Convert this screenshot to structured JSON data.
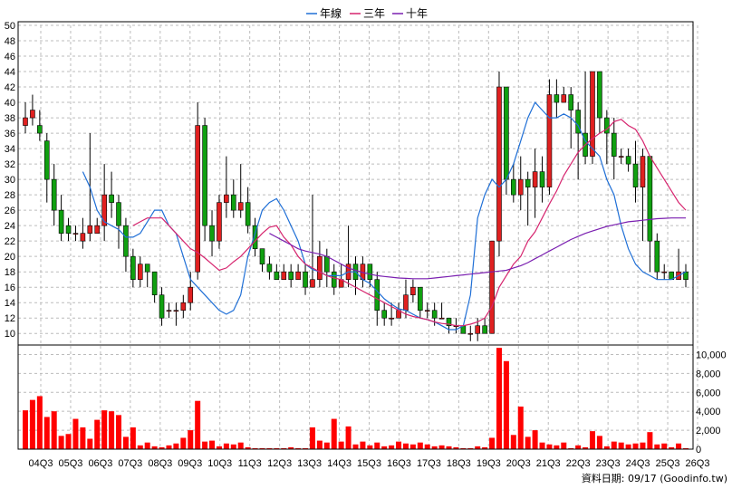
{
  "legend": [
    {
      "label": "年線",
      "color": "#1f6fd6"
    },
    {
      "label": "三年",
      "color": "#d6246e"
    },
    {
      "label": "十年",
      "color": "#7a1fb0"
    }
  ],
  "footer": {
    "text": "資料日期: 09/17  (Goodinfo.tw)"
  },
  "colors": {
    "up": "#e02020",
    "down": "#10a010",
    "wick": "#000000",
    "volume": "#ff0000",
    "grid": "#bcbcbc"
  },
  "chart_data": [
    {
      "type": "candlestick",
      "x_ticks": [
        "04Q3",
        "05Q3",
        "06Q3",
        "07Q3",
        "08Q3",
        "09Q3",
        "10Q3",
        "11Q3",
        "12Q3",
        "13Q3",
        "14Q3",
        "15Q3",
        "16Q3",
        "17Q3",
        "18Q3",
        "19Q3",
        "20Q3",
        "21Q3",
        "22Q3",
        "23Q3",
        "24Q3",
        "25Q3",
        "26Q3"
      ],
      "y_ticks": [
        10,
        12,
        14,
        16,
        18,
        20,
        22,
        24,
        26,
        28,
        30,
        32,
        34,
        36,
        38,
        40,
        42,
        44,
        46,
        48,
        50
      ],
      "ylim": [
        8.5,
        50
      ],
      "xlim": [
        0,
        92
      ],
      "grid": true,
      "legend_position": "top-center",
      "candles": [
        [
          37,
          38,
          36,
          40
        ],
        [
          38,
          39,
          37,
          41
        ],
        [
          37,
          36,
          35,
          39
        ],
        [
          35,
          30,
          27,
          36
        ],
        [
          30,
          26,
          24,
          32
        ],
        [
          26,
          23,
          22,
          28
        ],
        [
          24,
          23,
          22,
          25
        ],
        [
          23,
          23,
          22,
          24
        ],
        [
          22,
          23,
          21,
          25
        ],
        [
          23,
          24,
          22,
          36
        ],
        [
          23,
          24,
          23,
          25
        ],
        [
          24,
          28,
          22,
          32
        ],
        [
          28,
          27,
          25,
          31
        ],
        [
          27,
          24,
          21,
          28
        ],
        [
          24,
          20,
          18,
          25
        ],
        [
          20,
          17,
          16,
          21
        ],
        [
          17,
          19,
          16,
          20
        ],
        [
          19,
          18,
          16,
          19
        ],
        [
          18,
          15,
          14,
          18
        ],
        [
          15,
          12,
          11,
          16
        ],
        [
          13,
          13,
          12,
          14
        ],
        [
          13,
          13,
          11,
          14
        ],
        [
          13,
          14,
          12,
          15
        ],
        [
          14,
          16,
          13,
          18
        ],
        [
          18,
          37,
          17,
          40
        ],
        [
          37,
          24,
          22,
          38
        ],
        [
          24,
          22,
          20,
          26
        ],
        [
          22,
          27,
          21,
          28
        ],
        [
          27,
          28,
          25,
          33
        ],
        [
          28,
          26,
          25,
          30
        ],
        [
          26,
          27,
          25,
          32
        ],
        [
          27,
          24,
          23,
          29
        ],
        [
          24,
          21,
          20,
          25
        ],
        [
          21,
          19,
          18,
          21
        ],
        [
          19,
          18,
          17,
          20
        ],
        [
          18,
          17,
          17,
          19
        ],
        [
          17,
          18,
          17,
          19
        ],
        [
          18,
          17,
          16,
          19
        ],
        [
          17,
          18,
          17,
          19
        ],
        [
          18,
          16,
          15,
          19
        ],
        [
          16,
          17,
          16,
          28
        ],
        [
          17,
          20,
          16,
          22
        ],
        [
          20,
          18,
          16,
          21
        ],
        [
          18,
          16,
          15,
          19
        ],
        [
          16,
          17,
          16,
          19
        ],
        [
          17,
          19,
          16,
          24
        ],
        [
          19,
          17,
          15,
          20
        ],
        [
          17,
          19,
          16,
          20
        ],
        [
          19,
          17,
          16,
          19
        ],
        [
          17,
          13,
          11,
          18
        ],
        [
          13,
          12,
          11,
          14
        ],
        [
          12,
          12,
          11,
          14
        ],
        [
          12,
          13,
          12,
          14
        ],
        [
          13,
          15,
          12,
          17
        ],
        [
          15,
          16,
          14,
          17
        ],
        [
          16,
          13,
          12,
          16
        ],
        [
          13,
          13,
          12,
          14
        ],
        [
          13,
          12,
          11,
          14
        ],
        [
          12,
          12,
          12,
          14
        ],
        [
          12,
          11,
          10,
          12
        ],
        [
          11,
          11,
          10,
          12
        ],
        [
          11,
          10,
          10,
          11
        ],
        [
          10,
          10,
          9,
          11
        ],
        [
          10,
          11,
          9,
          12
        ],
        [
          11,
          10,
          10,
          12
        ],
        [
          10,
          22,
          10,
          22
        ],
        [
          22,
          42,
          20,
          44
        ],
        [
          42,
          30,
          28,
          42
        ],
        [
          30,
          28,
          27,
          32
        ],
        [
          28,
          30,
          26,
          33
        ],
        [
          30,
          29,
          24,
          31
        ],
        [
          29,
          31,
          25,
          34
        ],
        [
          31,
          29,
          27,
          33
        ],
        [
          29,
          41,
          28,
          43
        ],
        [
          41,
          40,
          38,
          43
        ],
        [
          40,
          41,
          40,
          42
        ],
        [
          41,
          39,
          34,
          42
        ],
        [
          39,
          36,
          30,
          40
        ],
        [
          36,
          33,
          32,
          44
        ],
        [
          33,
          44,
          32,
          44
        ],
        [
          44,
          38,
          36,
          44
        ],
        [
          38,
          36,
          32,
          39
        ],
        [
          36,
          33,
          30,
          38
        ],
        [
          33,
          33,
          32,
          34
        ],
        [
          33,
          32,
          31,
          34
        ],
        [
          32,
          29,
          27,
          35
        ],
        [
          29,
          33,
          22,
          34
        ],
        [
          33,
          22,
          18,
          33
        ],
        [
          22,
          18,
          17,
          23
        ],
        [
          18,
          18,
          17,
          19
        ],
        [
          18,
          17,
          17,
          18
        ],
        [
          17,
          18,
          17,
          21
        ],
        [
          18,
          17,
          16,
          19
        ]
      ],
      "series": [
        {
          "name": "年線",
          "color": "#1f6fd6",
          "x": [
            8,
            9,
            10,
            11,
            12,
            13,
            14,
            15,
            16,
            17,
            18,
            19,
            20,
            21,
            22,
            23,
            24,
            25,
            26,
            27,
            28,
            29,
            30,
            31,
            32,
            33,
            34,
            35,
            36,
            37,
            38,
            39,
            40,
            41,
            42,
            43,
            44,
            45,
            46,
            47,
            48,
            49,
            50,
            51,
            52,
            53,
            54,
            55,
            56,
            57,
            58,
            59,
            60,
            61,
            62,
            63,
            64,
            65,
            66,
            67,
            68,
            69,
            70,
            71,
            72,
            73,
            74,
            75,
            76,
            77,
            78,
            79,
            80,
            81,
            82,
            83,
            84,
            85,
            86,
            87,
            88,
            89,
            90,
            91,
            92
          ],
          "values": [
            31,
            29,
            26,
            24.5,
            24,
            23.5,
            22.5,
            22.5,
            23,
            24.5,
            26,
            26,
            24,
            23,
            20,
            17,
            16,
            15,
            14,
            13,
            12.5,
            13,
            15,
            20,
            23,
            26,
            27,
            27.5,
            26,
            24,
            22,
            19,
            18.3,
            18,
            17.5,
            17.5,
            17.5,
            18,
            18,
            17,
            16.5,
            15.5,
            14.5,
            13.8,
            13.2,
            13,
            12.5,
            12,
            11.8,
            11.5,
            11,
            10.5,
            10.5,
            11,
            15,
            25,
            28,
            30,
            29,
            30,
            32,
            35,
            38,
            40,
            39,
            38,
            38,
            38.5,
            38,
            37,
            35,
            34,
            33,
            30,
            28,
            24,
            21,
            19,
            18,
            17.5,
            17,
            17,
            17,
            17.5,
            18
          ]
        },
        {
          "name": "三年",
          "color": "#d6246e",
          "x": [
            15,
            16,
            17,
            18,
            19,
            20,
            21,
            22,
            23,
            24,
            25,
            26,
            27,
            28,
            29,
            30,
            31,
            32,
            33,
            34,
            35,
            36,
            37,
            38,
            39,
            40,
            41,
            42,
            43,
            44,
            45,
            46,
            47,
            48,
            49,
            50,
            51,
            52,
            53,
            54,
            55,
            56,
            57,
            58,
            59,
            60,
            61,
            62,
            63,
            64,
            65,
            66,
            67,
            68,
            69,
            70,
            71,
            72,
            73,
            74,
            75,
            76,
            77,
            78,
            79,
            80,
            81,
            82,
            83,
            84,
            85,
            86,
            87,
            88,
            89,
            90,
            91,
            92
          ],
          "values": [
            24,
            24.5,
            25,
            25,
            25,
            24,
            23,
            22,
            21,
            20.5,
            19.8,
            19,
            18.2,
            18.5,
            19.3,
            20,
            21,
            22,
            23,
            23.8,
            24,
            22.5,
            21.5,
            20,
            19,
            18.5,
            18,
            17.5,
            17.2,
            17,
            16.5,
            16,
            15.5,
            15,
            14.5,
            14,
            13.5,
            13,
            12.5,
            12.2,
            12,
            11.8,
            11.5,
            11.3,
            11.2,
            11,
            11,
            11.2,
            11.5,
            12,
            13.5,
            16,
            17.5,
            19,
            20,
            22,
            23.2,
            25,
            26.8,
            28.5,
            30.5,
            32,
            33.5,
            34.5,
            35.3,
            36,
            36.5,
            37.5,
            37.8,
            37,
            36.5,
            35,
            33,
            31.5,
            30,
            28.5,
            27,
            26
          ]
        },
        {
          "name": "十年",
          "color": "#7a1fb0",
          "x": [
            34,
            35,
            36,
            37,
            38,
            39,
            40,
            41,
            42,
            43,
            44,
            45,
            46,
            47,
            48,
            49,
            50,
            51,
            52,
            53,
            54,
            55,
            56,
            57,
            58,
            59,
            60,
            61,
            62,
            63,
            64,
            65,
            66,
            67,
            68,
            69,
            70,
            71,
            72,
            73,
            74,
            75,
            76,
            77,
            78,
            79,
            80,
            81,
            82,
            83,
            84,
            85,
            86,
            87,
            88,
            89,
            90,
            91,
            92
          ],
          "values": [
            23,
            22.5,
            22,
            21.5,
            21,
            20.7,
            20.5,
            20.3,
            20,
            19.5,
            19,
            18.5,
            18.2,
            17.9,
            17.7,
            17.5,
            17.4,
            17.3,
            17.2,
            17.15,
            17.1,
            17.1,
            17.1,
            17.2,
            17.3,
            17.4,
            17.5,
            17.6,
            17.7,
            17.8,
            17.9,
            18,
            18.1,
            18.2,
            18.5,
            18.8,
            19.2,
            19.7,
            20.2,
            20.7,
            21.2,
            21.7,
            22.2,
            22.6,
            23,
            23.3,
            23.6,
            23.9,
            24.1,
            24.3,
            24.5,
            24.6,
            24.7,
            24.8,
            24.9,
            24.95,
            25,
            25,
            25
          ]
        }
      ]
    },
    {
      "type": "bar",
      "y_ticks": [
        0,
        2000,
        4000,
        6000,
        8000,
        10000
      ],
      "y_tick_labels": [
        "0",
        "2,000",
        "4,000",
        "6,000",
        "8,000",
        "10,000"
      ],
      "ylim": [
        0,
        11000
      ],
      "xlim": [
        0,
        92
      ],
      "grid": true,
      "values": [
        4100,
        5200,
        5600,
        3400,
        4000,
        1400,
        1600,
        3200,
        2300,
        1100,
        3100,
        4100,
        4000,
        3600,
        1300,
        2300,
        400,
        700,
        300,
        200,
        400,
        600,
        1200,
        2000,
        5100,
        800,
        900,
        300,
        600,
        500,
        700,
        200,
        100,
        100,
        100,
        100,
        100,
        200,
        100,
        100,
        2300,
        900,
        700,
        3200,
        800,
        2400,
        500,
        800,
        400,
        700,
        300,
        400,
        800,
        600,
        500,
        700,
        500,
        300,
        400,
        300,
        200,
        100,
        100,
        300,
        200,
        1200,
        10700,
        9300,
        1500,
        4500,
        1300,
        2000,
        700,
        500,
        400,
        700,
        100,
        400,
        200,
        1900,
        1400,
        300,
        800,
        700,
        500,
        600,
        700,
        1800,
        500,
        600,
        200,
        600,
        100
      ]
    }
  ]
}
